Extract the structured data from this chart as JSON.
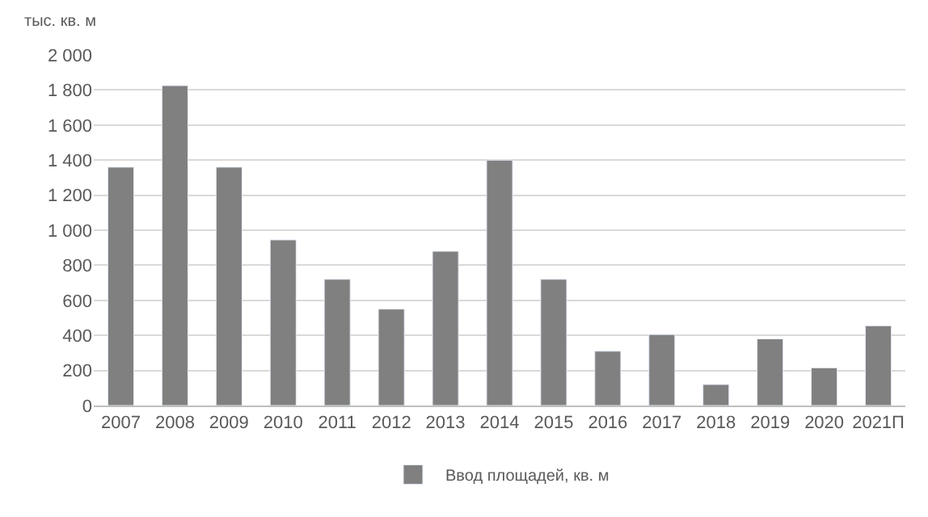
{
  "chart_data": {
    "type": "bar",
    "ylabel": "тыс. кв. м",
    "categories": [
      "2007",
      "2008",
      "2009",
      "2010",
      "2011",
      "2012",
      "2013",
      "2014",
      "2015",
      "2016",
      "2017",
      "2018",
      "2019",
      "2020",
      "2021П"
    ],
    "series": [
      {
        "name": "Ввод площадей, кв. м",
        "color": "#808080",
        "values": [
          1360,
          1825,
          1360,
          945,
          720,
          550,
          880,
          1400,
          720,
          310,
          405,
          120,
          380,
          215,
          455
        ]
      }
    ],
    "ylim": [
      0,
      2000
    ],
    "yticks": [
      0,
      200,
      400,
      600,
      800,
      {
        "value": 1000,
        "label": "1 000"
      },
      {
        "value": 1200,
        "label": "1 200"
      },
      {
        "value": 1400,
        "label": "1 400"
      },
      {
        "value": 1600,
        "label": "1 600"
      },
      {
        "value": 1800,
        "label": "1 800"
      },
      {
        "value": 2000,
        "label": "2 000"
      }
    ],
    "grid": "y",
    "legend": "bottom"
  }
}
